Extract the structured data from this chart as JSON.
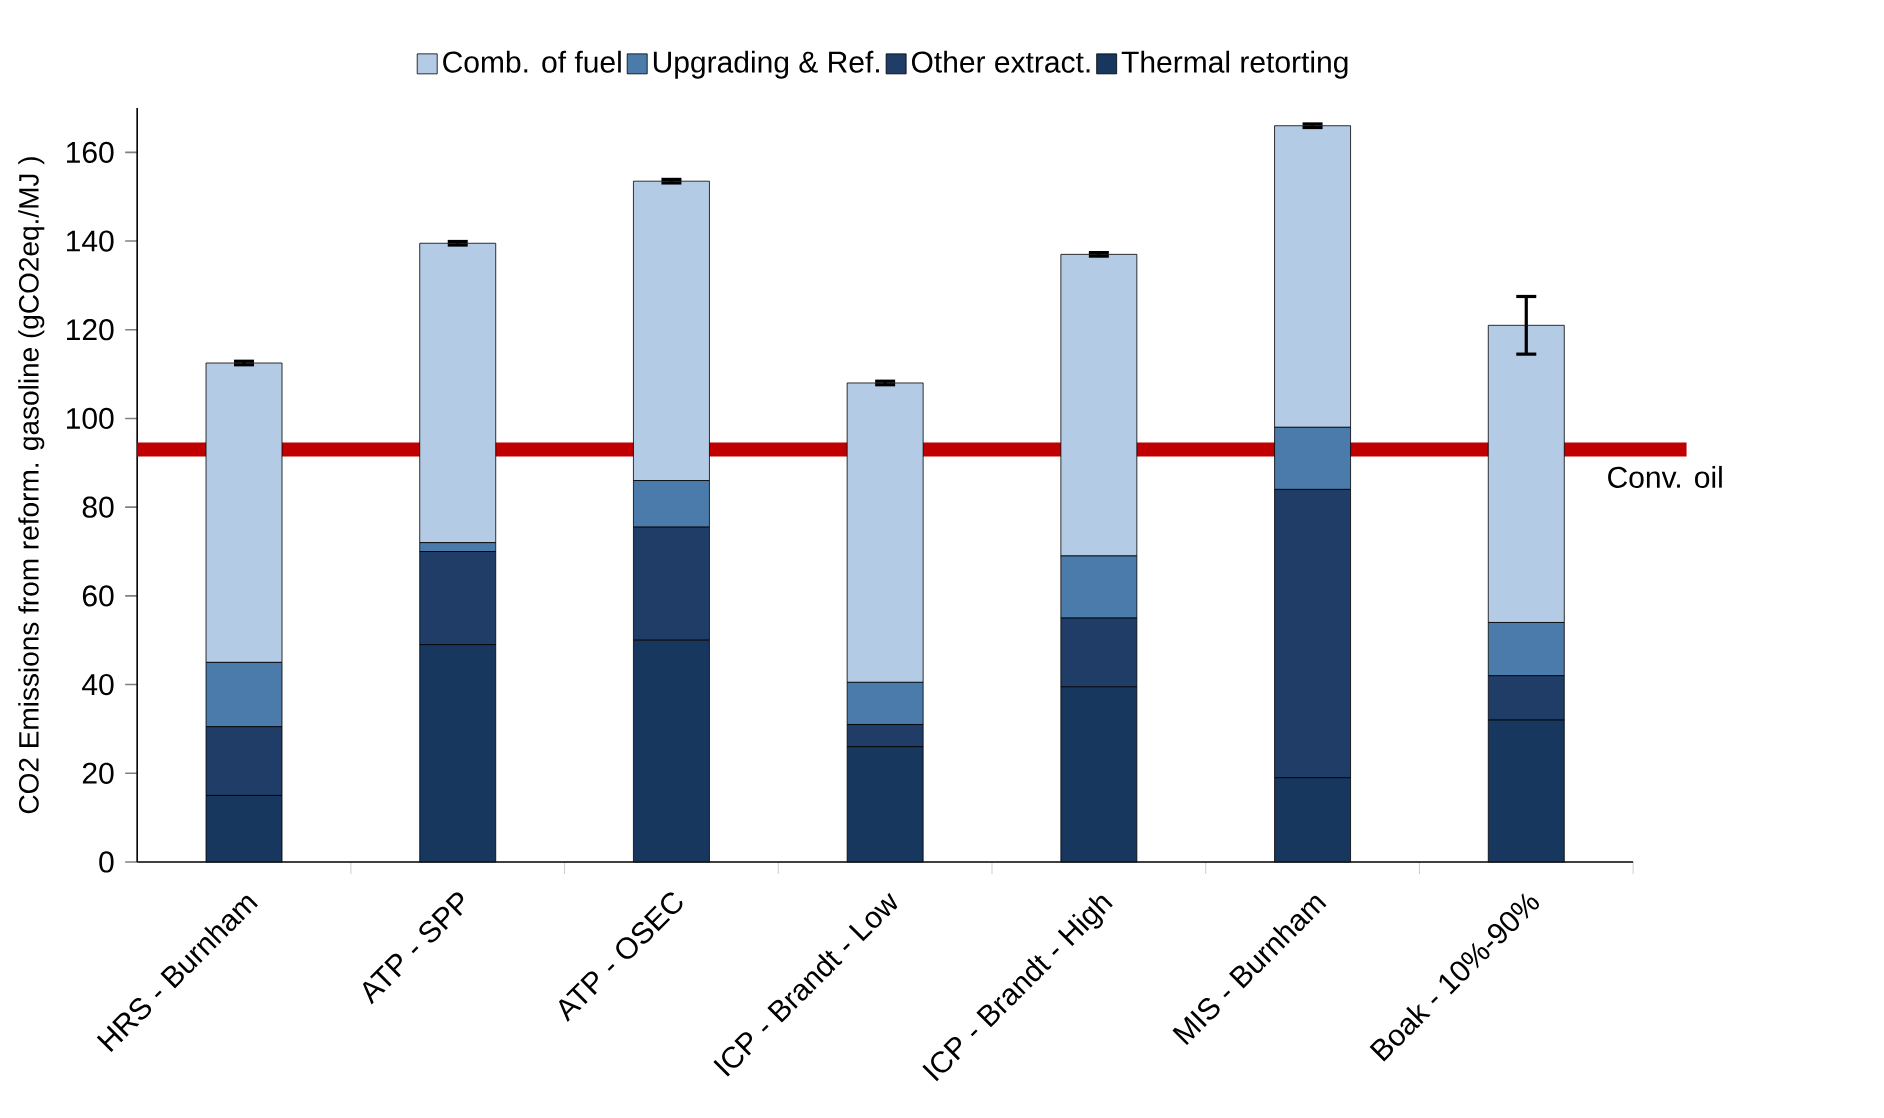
{
  "chart_data": {
    "type": "bar",
    "stacked": true,
    "ylabel": "CO2 Emissions from reform. gasoline (gCO2eq./MJ )",
    "categories": [
      "HRS - Burnham",
      "ATP - SPP",
      "ATP - OSEC",
      "ICP - Brandt - Low",
      "ICP - Brandt - High",
      "MIS - Burnham",
      "Boak - 10%-90%"
    ],
    "series": [
      {
        "name": "Thermal retorting",
        "color": "#17375e",
        "values": [
          15,
          49,
          50,
          26,
          39.5,
          19,
          32
        ]
      },
      {
        "name": "Other extract.",
        "color": "#1f3d66",
        "values": [
          15.5,
          21,
          25.5,
          5,
          15.5,
          65,
          10
        ]
      },
      {
        "name": "Upgrading & Ref.",
        "color": "#4a7bab",
        "values": [
          14.5,
          2,
          10.5,
          9.5,
          14,
          14,
          12
        ]
      },
      {
        "name": "Comb. of fuel",
        "color": "#b4cbe6",
        "values": [
          67.5,
          67.5,
          67.5,
          67.5,
          68,
          68,
          67
        ],
        "errors": [
          0.4,
          0.4,
          0.4,
          0.4,
          0.4,
          0.4,
          6.5
        ]
      }
    ],
    "ylim": [
      0,
      170
    ],
    "yticks": [
      0,
      20,
      40,
      60,
      80,
      100,
      120,
      140,
      160
    ],
    "legend": "top",
    "grid": false,
    "ref_lines": [
      {
        "axis": "y",
        "value": 93,
        "label": "Conv. oil",
        "color": "#c00000"
      }
    ]
  }
}
